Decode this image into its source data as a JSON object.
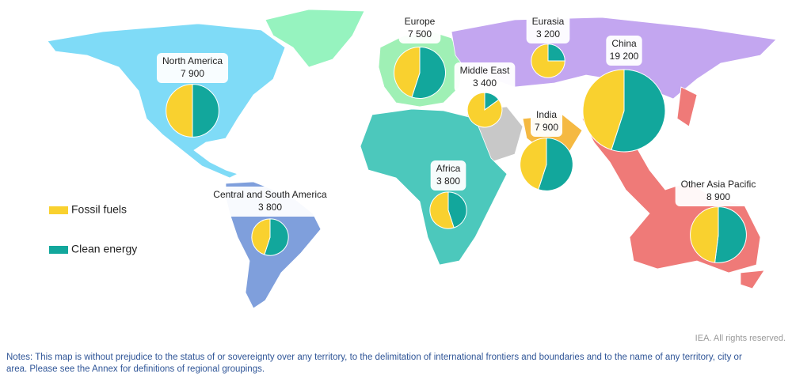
{
  "legend": {
    "fossil": "Fossil fuels",
    "clean": "Clean energy",
    "fossil_color": "#f9d12f",
    "clean_color": "#12a79c"
  },
  "regions": [
    {
      "name": "North America",
      "total": {
        "value": 7900,
        "label": "7 900"
      },
      "fossil": 50,
      "clean": 50
    },
    {
      "name": "Central and South America",
      "total": {
        "value": 3800,
        "label": "3 800"
      },
      "fossil": 45,
      "clean": 55
    },
    {
      "name": "Europe",
      "total": {
        "value": 7500,
        "label": "7 500"
      },
      "fossil": 45,
      "clean": 55
    },
    {
      "name": "Eurasia",
      "total": {
        "value": 3200,
        "label": "3 200"
      },
      "fossil": 75,
      "clean": 25
    },
    {
      "name": "Middle East",
      "total": {
        "value": 3400,
        "label": "3 400"
      },
      "fossil": 85,
      "clean": 15
    },
    {
      "name": "China",
      "total": {
        "value": 19200,
        "label": "19 200"
      },
      "fossil": 45,
      "clean": 55
    },
    {
      "name": "India",
      "total": {
        "value": 7900,
        "label": "7 900"
      },
      "fossil": 45,
      "clean": 55
    },
    {
      "name": "Africa",
      "total": {
        "value": 3800,
        "label": "3 800"
      },
      "fossil": 55,
      "clean": 45
    },
    {
      "name": "Other Asia Pacific",
      "total": {
        "value": 8900,
        "label": "8 900"
      },
      "fossil": 48,
      "clean": 52
    }
  ],
  "copyright": "IEA. All rights reserved.",
  "notes": [
    "Notes: This map is without prejudice to the status of or sovereignty over any territory, to the delimitation of international frontiers and boundaries and to the name of any territory, city or",
    "area. Please see the Annex for definitions of regional groupings."
  ]
}
